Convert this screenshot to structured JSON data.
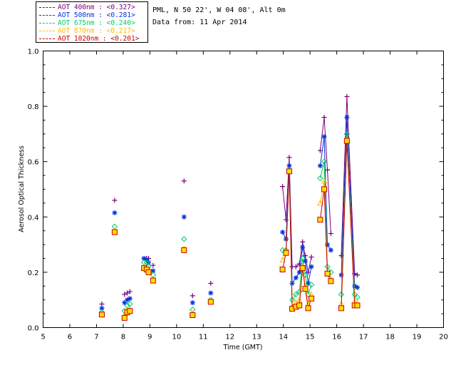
{
  "info": {
    "site_line": "PML, N 50 22', W 04 08', Alt 0m",
    "date_line": "Data from: 11 Apr 2014"
  },
  "legend": [
    {
      "label": "AOT  400nm : <0.327>",
      "color": "#7a007a"
    },
    {
      "label": "AOT  500nm : <0.281>",
      "color": "#0033dd"
    },
    {
      "label": "AOT  675nm : <0.240>",
      "color": "#00cc66"
    },
    {
      "label": "AOT  870nm : <0.217>",
      "color": "#ffbb00"
    },
    {
      "label": "AOT 1020nm : <0.201>",
      "color": "#cc0000"
    }
  ],
  "chart_data": {
    "type": "scatter",
    "title": "",
    "xlabel": "Time (GMT)",
    "ylabel": "Aerosol Optical Thickness",
    "xlim": [
      5,
      20
    ],
    "ylim": [
      0,
      1.0
    ],
    "xticks": [
      5,
      6,
      7,
      8,
      9,
      10,
      11,
      12,
      13,
      14,
      15,
      16,
      17,
      18,
      19,
      20
    ],
    "yticks": [
      0.0,
      0.2,
      0.4,
      0.6,
      0.8,
      1.0
    ],
    "ytick_labels": [
      "0.0",
      "0.2",
      "0.4",
      "0.6",
      "0.8",
      "1.0"
    ],
    "x": [
      7.2,
      7.68,
      8.05,
      8.15,
      8.25,
      8.78,
      8.88,
      8.95,
      9.12,
      10.28,
      10.6,
      11.28,
      13.97,
      14.1,
      14.22,
      14.33,
      14.47,
      14.6,
      14.72,
      14.82,
      14.93,
      15.05,
      15.38,
      15.53,
      15.65,
      15.78,
      16.17,
      16.38,
      16.67,
      16.77
    ],
    "connected_segments": [
      [
        12,
        21
      ],
      [
        22,
        25
      ],
      [
        26,
        29
      ]
    ],
    "series": [
      {
        "name": "AOT 400nm",
        "color": "#7a007a",
        "marker": "plus",
        "values": [
          0.085,
          0.46,
          0.12,
          0.125,
          0.13,
          0.25,
          0.25,
          0.25,
          0.225,
          0.53,
          0.115,
          0.16,
          0.51,
          0.39,
          0.615,
          0.22,
          0.22,
          0.23,
          0.31,
          0.26,
          0.2,
          0.255,
          0.64,
          0.76,
          0.57,
          0.34,
          0.26,
          0.835,
          0.195,
          0.19
        ]
      },
      {
        "name": "AOT 500nm",
        "color": "#0033dd",
        "marker": "asterisk",
        "values": [
          0.07,
          0.415,
          0.09,
          0.1,
          0.105,
          0.25,
          0.245,
          0.235,
          0.205,
          0.4,
          0.09,
          0.125,
          0.345,
          0.32,
          0.585,
          0.16,
          0.18,
          0.2,
          0.29,
          0.24,
          0.16,
          0.22,
          0.585,
          0.69,
          0.3,
          0.28,
          0.19,
          0.76,
          0.15,
          0.145
        ]
      },
      {
        "name": "AOT 675nm",
        "color": "#00cc66",
        "marker": "diamond",
        "values": [
          0.055,
          0.365,
          0.06,
          0.08,
          0.085,
          0.235,
          0.235,
          0.22,
          0.19,
          0.32,
          0.065,
          0.1,
          0.28,
          0.28,
          0.57,
          0.1,
          0.12,
          0.13,
          0.25,
          0.19,
          0.12,
          0.155,
          0.54,
          0.6,
          0.22,
          0.2,
          0.12,
          0.7,
          0.12,
          0.11
        ]
      },
      {
        "name": "AOT 870nm",
        "color": "#ffbb00",
        "marker": "triangle",
        "values": [
          0.05,
          0.35,
          0.045,
          0.065,
          0.065,
          0.22,
          0.215,
          0.205,
          0.175,
          0.285,
          0.05,
          0.095,
          0.245,
          0.27,
          0.565,
          0.075,
          0.09,
          0.1,
          0.22,
          0.15,
          0.085,
          0.12,
          0.45,
          0.53,
          0.2,
          0.175,
          0.085,
          0.68,
          0.095,
          0.09
        ]
      },
      {
        "name": "AOT 1020nm",
        "color": "#cc0000",
        "marker": "square",
        "values": [
          0.047,
          0.345,
          0.035,
          0.055,
          0.06,
          0.215,
          0.21,
          0.2,
          0.17,
          0.28,
          0.045,
          0.093,
          0.21,
          0.27,
          0.565,
          0.068,
          0.075,
          0.08,
          0.215,
          0.14,
          0.07,
          0.105,
          0.39,
          0.5,
          0.195,
          0.168,
          0.07,
          0.675,
          0.08,
          0.08
        ]
      }
    ]
  }
}
